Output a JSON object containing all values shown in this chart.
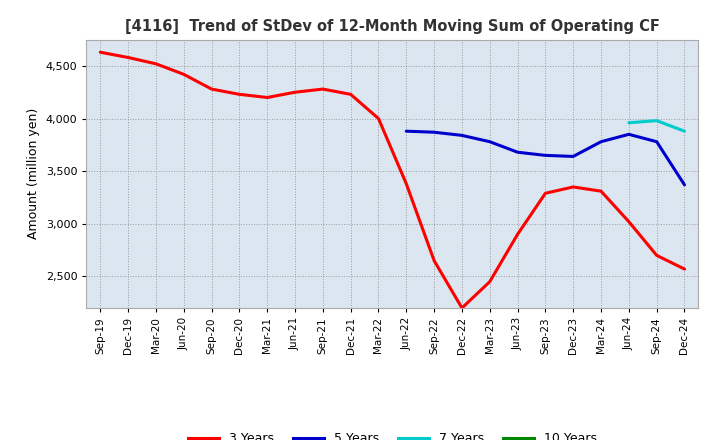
{
  "title": "[4116]  Trend of StDev of 12-Month Moving Sum of Operating CF",
  "ylabel": "Amount (million yen)",
  "background_color": "#ffffff",
  "plot_bg_color": "#dce6f0",
  "ylim": [
    2200,
    4750
  ],
  "yticks": [
    2500,
    3000,
    3500,
    4000,
    4500
  ],
  "x_labels": [
    "Sep-19",
    "Dec-19",
    "Mar-20",
    "Jun-20",
    "Sep-20",
    "Dec-20",
    "Mar-21",
    "Jun-21",
    "Sep-21",
    "Dec-21",
    "Mar-22",
    "Jun-22",
    "Sep-22",
    "Dec-22",
    "Mar-23",
    "Jun-23",
    "Sep-23",
    "Dec-23",
    "Mar-24",
    "Jun-24",
    "Sep-24",
    "Dec-24"
  ],
  "series": {
    "3 Years": {
      "color": "#ff0000",
      "data": [
        4630,
        4580,
        4520,
        4420,
        4280,
        4230,
        4200,
        4250,
        4280,
        4230,
        4000,
        3380,
        2650,
        2200,
        2450,
        2900,
        3290,
        3350,
        3310,
        3020,
        2700,
        2570
      ]
    },
    "5 Years": {
      "color": "#0000cc",
      "data": [
        null,
        null,
        null,
        null,
        null,
        null,
        null,
        null,
        null,
        null,
        null,
        3880,
        3870,
        3840,
        3780,
        3680,
        3650,
        3640,
        3780,
        3850,
        3780,
        3370
      ]
    },
    "7 Years": {
      "color": "#00cccc",
      "data": [
        null,
        null,
        null,
        null,
        null,
        null,
        null,
        null,
        null,
        null,
        null,
        null,
        null,
        null,
        null,
        null,
        null,
        null,
        null,
        3960,
        3980,
        3880
      ]
    },
    "10 Years": {
      "color": "#008800",
      "data": [
        null,
        null,
        null,
        null,
        null,
        null,
        null,
        null,
        null,
        null,
        null,
        null,
        null,
        null,
        null,
        null,
        null,
        null,
        null,
        null,
        null,
        null
      ]
    }
  },
  "legend_order": [
    "3 Years",
    "5 Years",
    "7 Years",
    "10 Years"
  ]
}
